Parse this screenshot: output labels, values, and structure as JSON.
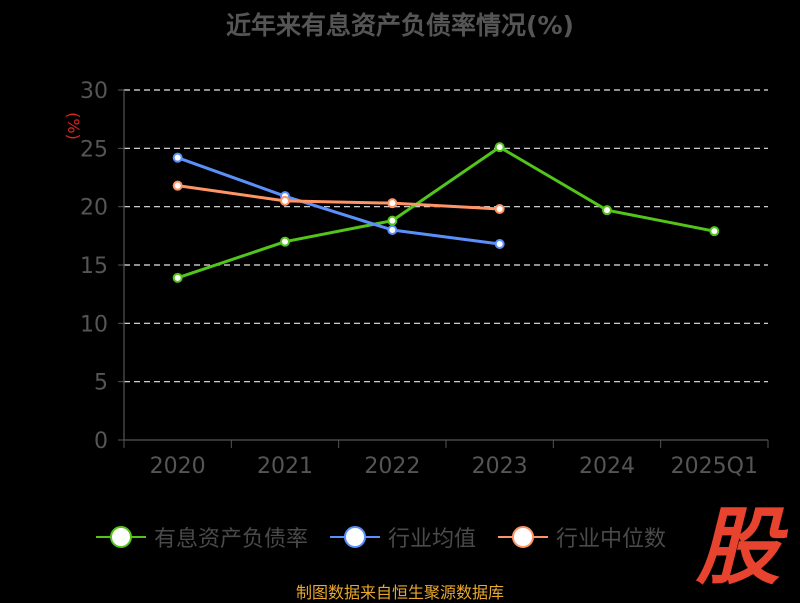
{
  "chart_data": {
    "type": "line",
    "title": "近年来有息资产负债率情况(%)",
    "ylabel": "(%)",
    "categories": [
      "2020",
      "2021",
      "2022",
      "2023",
      "2024",
      "2025Q1"
    ],
    "ylim": [
      0,
      30
    ],
    "yticks": [
      0,
      5,
      10,
      15,
      20,
      25,
      30
    ],
    "grid": true,
    "legend_position": "bottom",
    "series": [
      {
        "name": "有息资产负债率",
        "color": "#52c41a",
        "values": [
          13.9,
          17.0,
          18.8,
          25.1,
          19.7,
          17.9
        ]
      },
      {
        "name": "行业均值",
        "color": "#5b8ff9",
        "values": [
          24.2,
          20.9,
          18.0,
          16.8,
          null,
          null
        ]
      },
      {
        "name": "行业中位数",
        "color": "#ff9466",
        "values": [
          21.8,
          20.5,
          20.3,
          19.8,
          null,
          null
        ]
      }
    ]
  },
  "footer": {
    "source": "制图数据来自恒生聚源数据库"
  },
  "watermark": {
    "text": "股",
    "color": "#e8432f"
  }
}
